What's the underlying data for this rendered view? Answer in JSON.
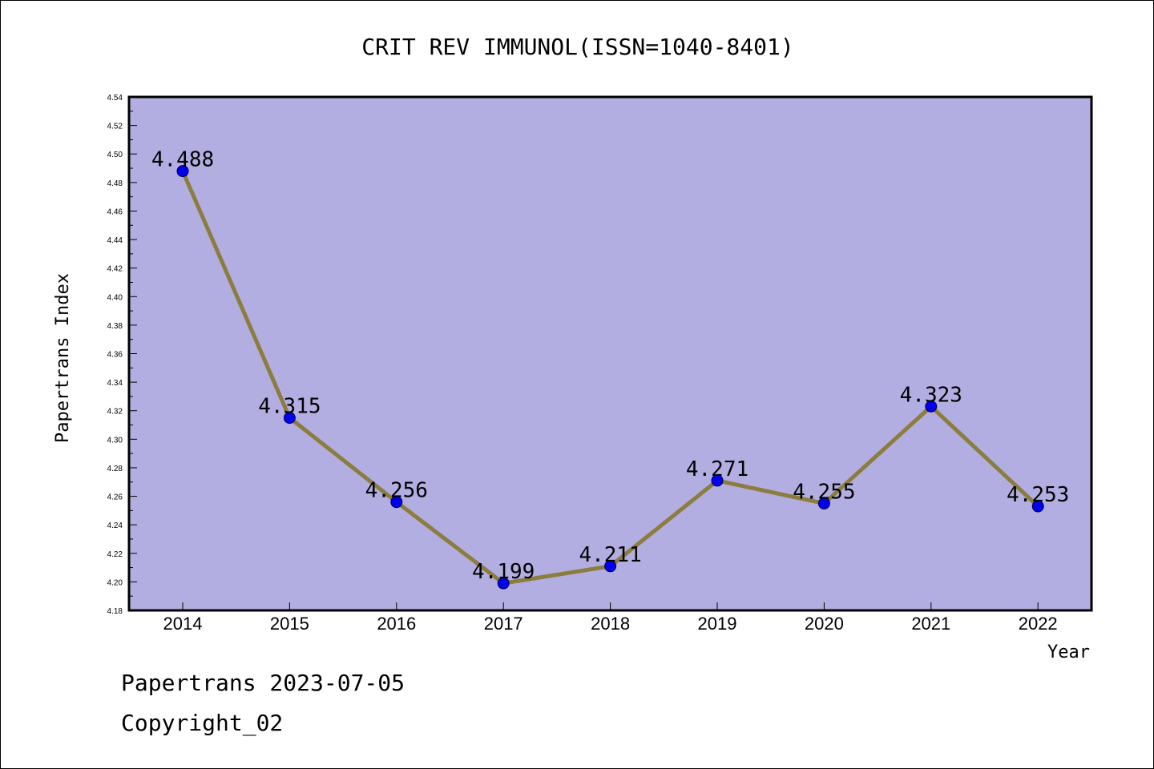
{
  "chart_data": {
    "type": "line",
    "title": "CRIT REV IMMUNOL(ISSN=1040-8401)",
    "xlabel": "Year",
    "ylabel": "Papertrans Index",
    "categories": [
      "2014",
      "2015",
      "2016",
      "2017",
      "2018",
      "2019",
      "2020",
      "2021",
      "2022"
    ],
    "series": [
      {
        "values": [
          4.488,
          4.315,
          4.256,
          4.199,
          4.211,
          4.271,
          4.255,
          4.323,
          4.253
        ],
        "labels": [
          "4.488",
          "4.315",
          "4.256",
          "4.199",
          "4.211",
          "4.271",
          "4.255",
          "4.323",
          "4.253"
        ]
      }
    ],
    "ylim": [
      4.18,
      4.54
    ],
    "yticks": [
      "4.18",
      "4.20",
      "4.22",
      "4.24",
      "4.26",
      "4.28",
      "4.30",
      "4.32",
      "4.34",
      "4.36",
      "4.38",
      "4.40",
      "4.42",
      "4.44",
      "4.46",
      "4.48",
      "4.50",
      "4.52",
      "4.54"
    ],
    "grid": false,
    "colors": {
      "plot_background": "#b3aee1",
      "line": "#8b7d3e",
      "marker": "#0000ee"
    }
  },
  "footer": {
    "line1": "Papertrans 2023-07-05",
    "line2": "Copyright_02"
  }
}
